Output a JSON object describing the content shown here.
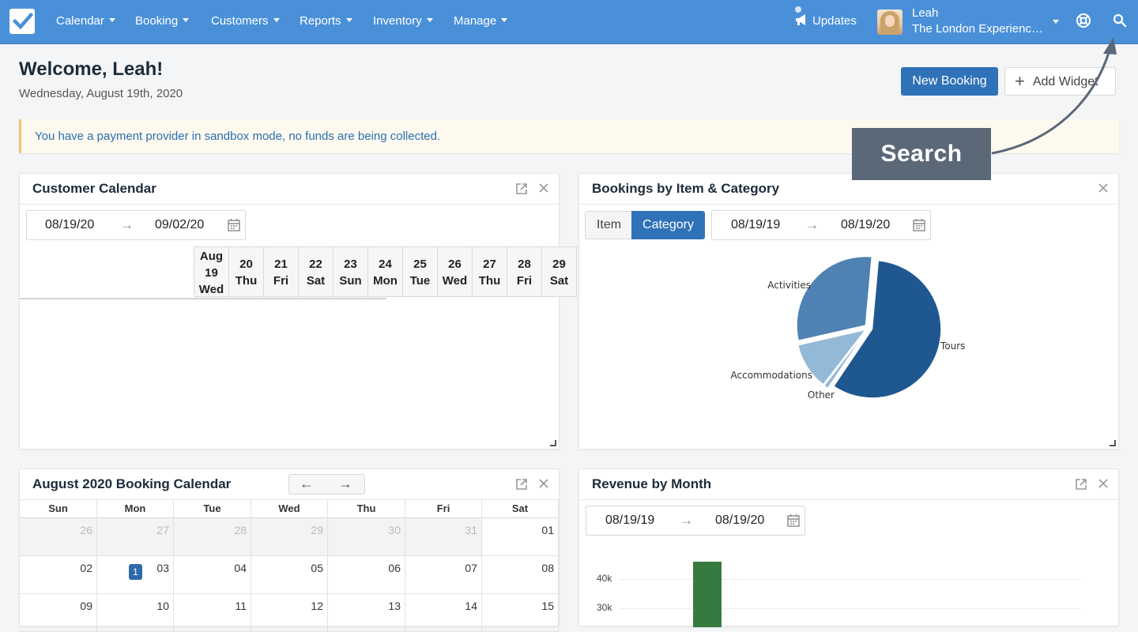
{
  "nav": {
    "items": [
      "Calendar",
      "Booking",
      "Customers",
      "Reports",
      "Inventory",
      "Manage"
    ],
    "updates": "Updates",
    "user_name": "Leah",
    "user_org": "The London Experienc…"
  },
  "header": {
    "welcome": "Welcome, Leah!",
    "date": "Wednesday, August 19th, 2020",
    "new_booking": "New Booking",
    "add_widget": "Add Widget"
  },
  "alert": "You have a payment provider in sandbox mode, no funds are being collected.",
  "customer_calendar": {
    "title": "Customer Calendar",
    "date_from": "08/19/20",
    "date_to": "09/02/20",
    "columns": [
      {
        "l1": "Aug",
        "l2": "19",
        "l3": "Wed"
      },
      {
        "l1": "20",
        "l2": "Thu"
      },
      {
        "l1": "21",
        "l2": "Fri"
      },
      {
        "l1": "22",
        "l2": "Sat"
      },
      {
        "l1": "23",
        "l2": "Sun"
      },
      {
        "l1": "24",
        "l2": "Mon"
      },
      {
        "l1": "25",
        "l2": "Tue"
      },
      {
        "l1": "26",
        "l2": "Wed"
      },
      {
        "l1": "27",
        "l2": "Thu"
      },
      {
        "l1": "28",
        "l2": "Fri"
      },
      {
        "l1": "29",
        "l2": "Sat"
      }
    ]
  },
  "bookings_chart": {
    "title": "Bookings by Item & Category",
    "toggle_item": "Item",
    "toggle_category": "Category",
    "date_from": "08/19/19",
    "date_to": "08/19/20"
  },
  "booking_calendar": {
    "title": "August 2020 Booking Calendar",
    "weekdays": [
      "Sun",
      "Mon",
      "Tue",
      "Wed",
      "Thu",
      "Fri",
      "Sat"
    ],
    "weeks": [
      [
        {
          "d": "26",
          "o": true
        },
        {
          "d": "27",
          "o": true
        },
        {
          "d": "28",
          "o": true
        },
        {
          "d": "29",
          "o": true
        },
        {
          "d": "30",
          "o": true
        },
        {
          "d": "31",
          "o": true
        },
        {
          "d": "01",
          "o": false
        }
      ],
      [
        {
          "d": "02",
          "o": false
        },
        {
          "d": "03",
          "o": false,
          "badge": "1"
        },
        {
          "d": "04",
          "o": false
        },
        {
          "d": "05",
          "o": false
        },
        {
          "d": "06",
          "o": false
        },
        {
          "d": "07",
          "o": false
        },
        {
          "d": "08",
          "o": false
        }
      ],
      [
        {
          "d": "09",
          "o": false
        },
        {
          "d": "10",
          "o": false
        },
        {
          "d": "11",
          "o": false
        },
        {
          "d": "12",
          "o": false
        },
        {
          "d": "13",
          "o": false
        },
        {
          "d": "14",
          "o": false
        },
        {
          "d": "15",
          "o": false
        }
      ]
    ]
  },
  "revenue": {
    "title": "Revenue by Month",
    "date_from": "08/19/19",
    "date_to": "08/19/20"
  },
  "tooltip": "Search",
  "colors": {
    "nav": "#4a90d9",
    "primary": "#2f72b8",
    "pie_tours": "#1f5890",
    "pie_activities": "#4f82b2",
    "pie_accommodations": "#94b9d6",
    "bar": "#367a3f"
  },
  "chart_data": [
    {
      "type": "pie",
      "labels": [
        "Tours",
        "Activities",
        "Accommodations",
        "Other"
      ],
      "values": [
        58,
        30,
        11,
        1
      ]
    },
    {
      "type": "bar",
      "title": "",
      "yticks": [
        "40k",
        "30k"
      ],
      "values": [
        46000
      ]
    }
  ]
}
